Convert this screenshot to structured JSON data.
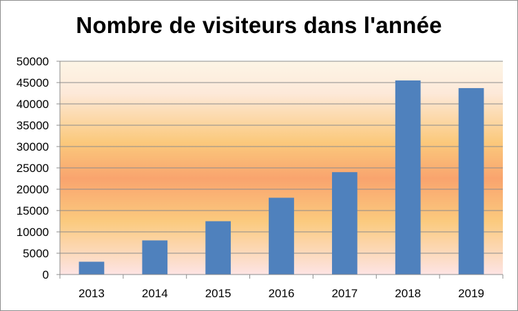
{
  "chart_data": {
    "type": "bar",
    "title": "Nombre de visiteurs dans l'année",
    "xlabel": "",
    "ylabel": "",
    "categories": [
      "2013",
      "2014",
      "2015",
      "2016",
      "2017",
      "2018",
      "2019"
    ],
    "values": [
      3000,
      8000,
      12500,
      18000,
      24000,
      45500,
      43700
    ],
    "ylim": [
      0,
      50000
    ],
    "yticks": [
      0,
      5000,
      10000,
      15000,
      20000,
      25000,
      30000,
      35000,
      40000,
      45000,
      50000
    ],
    "grid": true,
    "legend": "none",
    "bar_color": "#4f81bd",
    "gridline_color": "#8c8c8c",
    "plot_background": [
      "#fdf5e6",
      "#fde9d9",
      "#fbc97c",
      "#f9a46e",
      "#fbca7e",
      "#fde4e4"
    ]
  }
}
